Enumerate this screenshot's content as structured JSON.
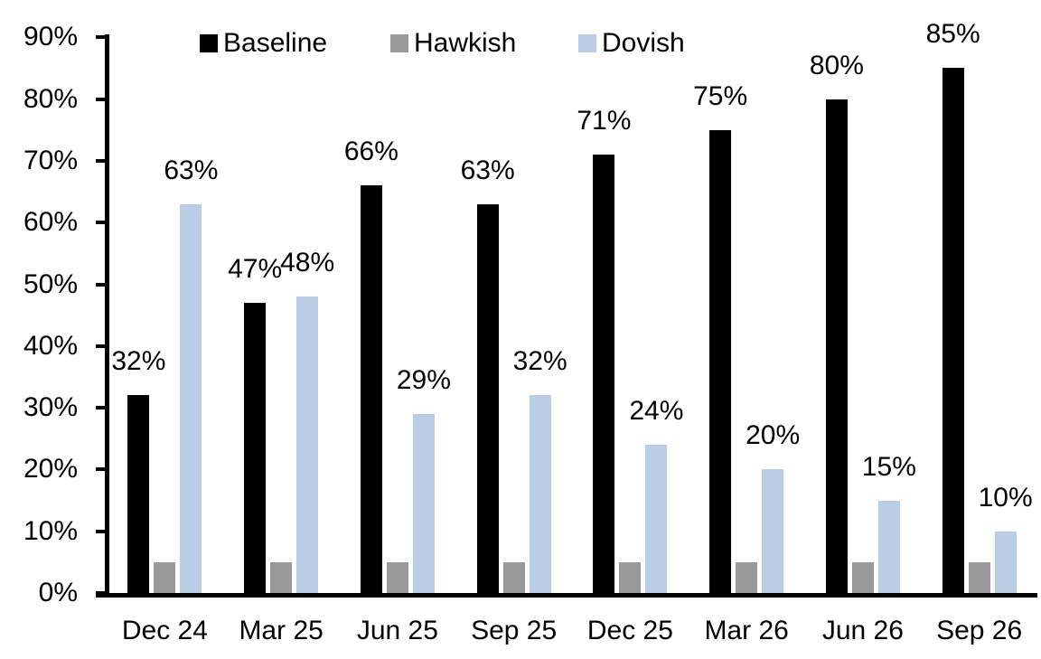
{
  "chart_data": {
    "type": "bar",
    "title": "",
    "xlabel": "",
    "ylabel": "",
    "categories": [
      "Dec 24",
      "Mar 25",
      "Jun 25",
      "Sep 25",
      "Dec 25",
      "Mar 26",
      "Jun 26",
      "Sep 26"
    ],
    "series": [
      {
        "name": "Baseline",
        "color": "#000000",
        "values": [
          32,
          47,
          66,
          63,
          71,
          75,
          80,
          85
        ],
        "data_labels": [
          "32%",
          "47%",
          "66%",
          "63%",
          "71%",
          "75%",
          "80%",
          "85%"
        ]
      },
      {
        "name": "Hawkish",
        "color": "#999999",
        "values": [
          5,
          5,
          5,
          5,
          5,
          5,
          5,
          5
        ],
        "data_labels": [
          "",
          "",
          "",
          "",
          "",
          "",
          "",
          ""
        ]
      },
      {
        "name": "Dovish",
        "color": "#b9cde4",
        "values": [
          63,
          48,
          29,
          32,
          24,
          20,
          15,
          10
        ],
        "data_labels": [
          "63%",
          "48%",
          "29%",
          "32%",
          "24%",
          "20%",
          "15%",
          "10%"
        ]
      }
    ],
    "ylim": [
      0,
      90
    ],
    "ytick_step": 10,
    "ytick_labels": [
      "0%",
      "10%",
      "20%",
      "30%",
      "40%",
      "50%",
      "60%",
      "70%",
      "80%",
      "90%"
    ],
    "grid": false,
    "legend_position": "top",
    "legend_labels": [
      "Baseline",
      "Hawkish",
      "Dovish"
    ]
  },
  "colors": {
    "axis": "#000000",
    "text": "#000000",
    "background": "#ffffff"
  }
}
